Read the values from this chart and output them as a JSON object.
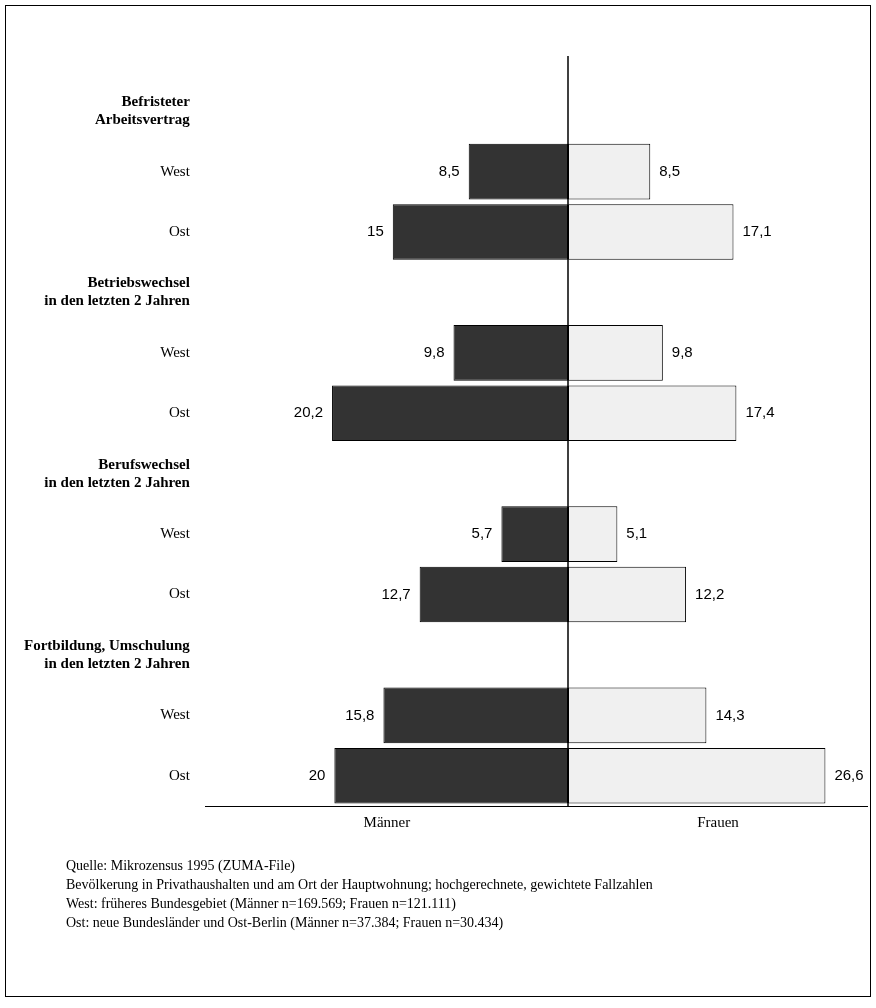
{
  "chart_data": [
    {
      "type": "bar",
      "orientation": "horizontal",
      "xlabel": "Männer",
      "categories": [
        "Befristeter\nArbeitsvertrag",
        "West",
        "Ost",
        "Betriebswechsel\nin den letzten 2 Jahren",
        "West",
        "Ost",
        "Berufswechsel\nin den letzten 2 Jahren",
        "West",
        "Ost",
        "Fortbildung, Umschulung\nin den letzten 2 Jahren",
        "West",
        "Ost"
      ],
      "series": [
        {
          "color": "#333333",
          "values": [
            null,
            8.5,
            15,
            null,
            9.8,
            20.2,
            null,
            5.7,
            12.7,
            null,
            15.8,
            20
          ],
          "value_labels": [
            null,
            "8,5",
            "15",
            null,
            "9,8",
            "20,2",
            null,
            "5,7",
            "12,7",
            null,
            "15,8",
            "20"
          ]
        }
      ],
      "xlim": [
        31,
        0
      ],
      "tick_labels": "y"
    },
    {
      "type": "bar",
      "orientation": "horizontal",
      "xlabel": "Frauen",
      "categories": [
        null,
        null,
        null,
        null,
        null,
        null,
        null,
        null,
        null,
        null,
        null,
        null
      ],
      "series": [
        {
          "color": "#f0f0f0",
          "values": [
            null,
            8.5,
            17.1,
            null,
            9.8,
            17.4,
            null,
            5.1,
            12.2,
            null,
            14.3,
            26.6
          ],
          "value_labels": [
            null,
            "8,5",
            "17,1",
            null,
            "9,8",
            "17,4",
            null,
            "5,1",
            "12,2",
            null,
            "14,3",
            "26,6"
          ]
        }
      ],
      "xlim": [
        0,
        31
      ],
      "tick_labels": false,
      "annotations": [
        "Quelle: Mikrozensus 1995 (ZUMA-File)",
        "Bevölkerung in Privathaushalten und am Ort der Hauptwohnung; hochgerechnete, gewichtete Fallzahlen",
        "West: früheres Bundesgebiet (Männer n=169.569; Frauen n=121.111)",
        "Ost: neue Bundesländer und Ost-Berlin (Männer n=37.384; Frauen n=30.434)"
      ]
    }
  ]
}
